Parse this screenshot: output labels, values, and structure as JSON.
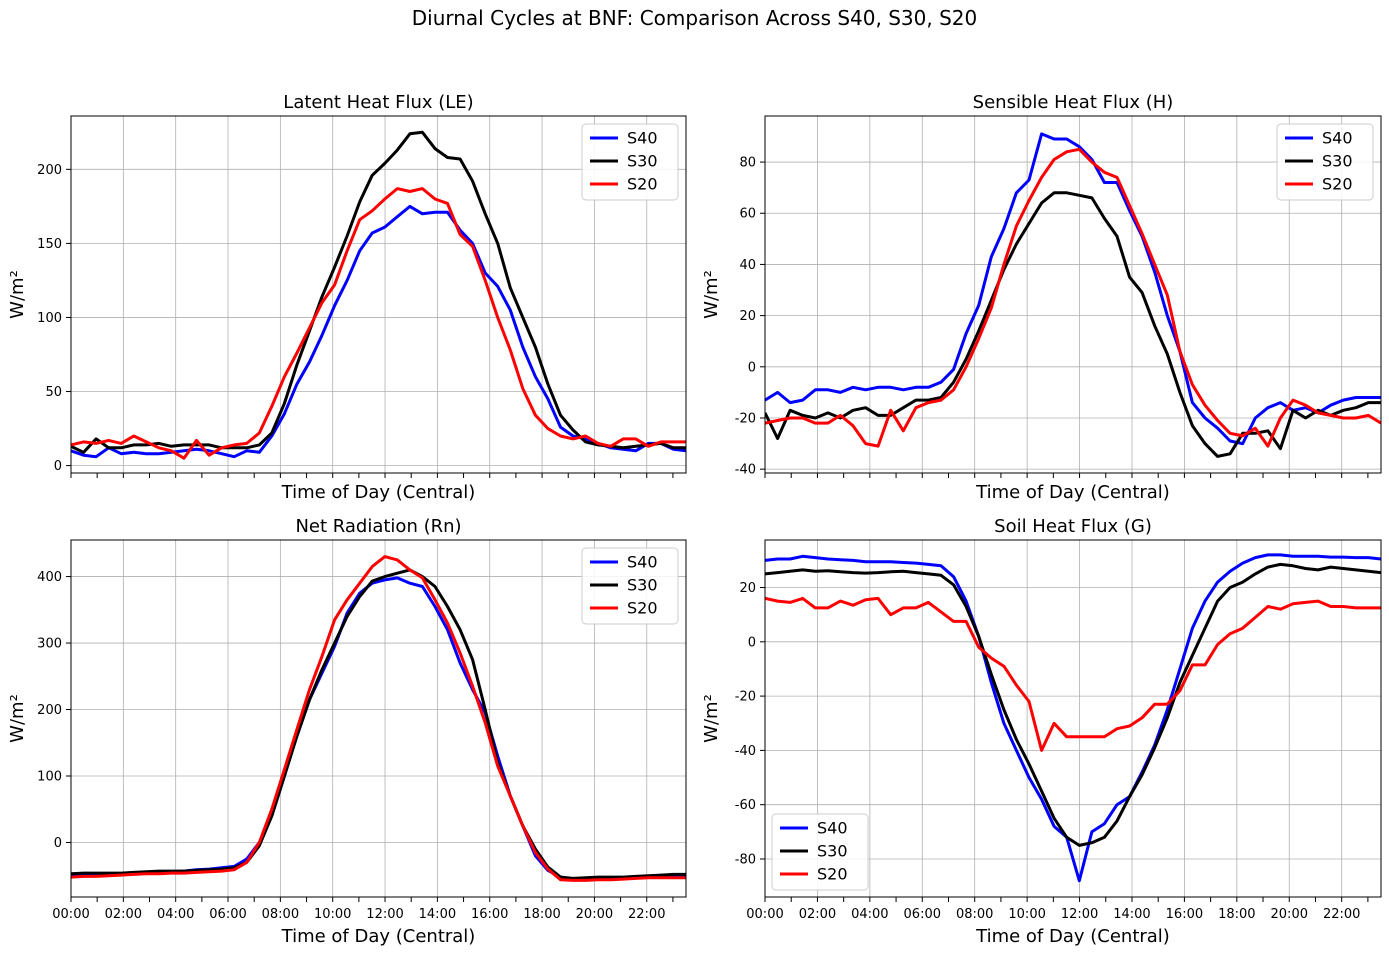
{
  "figure": {
    "suptitle": "Diurnal Cycles at BNF: Comparison Across S40, S30, S20"
  },
  "chart_data": [
    {
      "type": "line",
      "title": "Latent Heat Flux (LE)",
      "xlabel": "Time of Day (Central)",
      "ylabel": "W/m²",
      "xlim": [
        0,
        23.5
      ],
      "ylim": [
        -5,
        236
      ],
      "yticks": [
        0,
        50,
        100,
        150,
        200
      ],
      "xticks": [
        0,
        2,
        4,
        6,
        8,
        10,
        12,
        14,
        16,
        18,
        20,
        22
      ],
      "xtick_labels": [
        "00:00",
        "02:00",
        "04:00",
        "06:00",
        "08:00",
        "10:00",
        "12:00",
        "14:00",
        "16:00",
        "18:00",
        "20:00",
        "22:00"
      ],
      "show_xtick_labels": false,
      "grid": true,
      "legend_loc": "upper right",
      "series": [
        {
          "name": "S40",
          "color": "#0000ff",
          "values": [
            10,
            7,
            6,
            12,
            8,
            9,
            8,
            8,
            9,
            10,
            11,
            10,
            8,
            6,
            10,
            9,
            20,
            35,
            55,
            70,
            88,
            108,
            125,
            145,
            157,
            161,
            168,
            175,
            170,
            171,
            171,
            159,
            150,
            130,
            121,
            105,
            80,
            60,
            45,
            26,
            20,
            18,
            15,
            12,
            11,
            10,
            15,
            15,
            11,
            10
          ]
        },
        {
          "name": "S30",
          "color": "#000000",
          "values": [
            13,
            9,
            18,
            12,
            12,
            14,
            14,
            15,
            13,
            14,
            14,
            14,
            12,
            12,
            12,
            14,
            22,
            42,
            68,
            91,
            114,
            134,
            155,
            178,
            196,
            204,
            213,
            224,
            225,
            214,
            208,
            207,
            192,
            170,
            150,
            120,
            100,
            80,
            55,
            34,
            24,
            16,
            14,
            13,
            12,
            13,
            14,
            15,
            12,
            12
          ]
        },
        {
          "name": "S20",
          "color": "#ff0000",
          "values": [
            14,
            16,
            15,
            17,
            15,
            20,
            16,
            12,
            10,
            5,
            17,
            7,
            12,
            14,
            15,
            22,
            40,
            60,
            76,
            93,
            110,
            122,
            145,
            166,
            172,
            180,
            187,
            185,
            187,
            180,
            177,
            156,
            148,
            125,
            100,
            78,
            52,
            34,
            25,
            20,
            18,
            20,
            15,
            13,
            18,
            18,
            13,
            16,
            16,
            16
          ]
        }
      ]
    },
    {
      "type": "line",
      "title": "Sensible Heat Flux (H)",
      "xlabel": "Time of Day (Central)",
      "ylabel": "W/m²",
      "xlim": [
        0,
        23.5
      ],
      "ylim": [
        -41.5,
        98
      ],
      "yticks": [
        -40,
        -20,
        0,
        20,
        40,
        60,
        80
      ],
      "xticks": [
        0,
        2,
        4,
        6,
        8,
        10,
        12,
        14,
        16,
        18,
        20,
        22
      ],
      "xtick_labels": [
        "00:00",
        "02:00",
        "04:00",
        "06:00",
        "08:00",
        "10:00",
        "12:00",
        "14:00",
        "16:00",
        "18:00",
        "20:00",
        "22:00"
      ],
      "show_xtick_labels": false,
      "grid": true,
      "legend_loc": "upper right",
      "series": [
        {
          "name": "S40",
          "color": "#0000ff",
          "values": [
            -13,
            -10,
            -14,
            -13,
            -9,
            -9,
            -10,
            -8,
            -9,
            -8,
            -8,
            -9,
            -8,
            -8,
            -6,
            -1,
            13,
            24,
            43,
            54,
            68,
            73,
            91,
            89,
            89,
            86,
            81,
            72,
            72,
            61,
            51,
            37,
            20,
            6,
            -14,
            -20,
            -24,
            -29,
            -30,
            -20,
            -16,
            -14,
            -17,
            -16,
            -18,
            -15,
            -13,
            -12,
            -12,
            -12
          ]
        },
        {
          "name": "S30",
          "color": "#000000",
          "values": [
            -18,
            -28,
            -17,
            -19,
            -20,
            -18,
            -20,
            -17,
            -16,
            -19,
            -19,
            -16,
            -13,
            -13,
            -12,
            -6,
            3,
            14,
            26,
            38,
            48,
            56,
            64,
            68,
            68,
            67,
            66,
            58,
            51,
            35,
            29,
            16,
            5,
            -10,
            -23,
            -30,
            -35,
            -34,
            -26,
            -26,
            -25,
            -32,
            -17,
            -20,
            -17,
            -19,
            -17,
            -16,
            -14,
            -14
          ]
        },
        {
          "name": "S20",
          "color": "#ff0000",
          "values": [
            -22,
            -21,
            -20,
            -20,
            -22,
            -22,
            -19,
            -23,
            -30,
            -31,
            -17,
            -25,
            -16,
            -14,
            -13,
            -9,
            0,
            11,
            23,
            40,
            55,
            65,
            74,
            81,
            84,
            85,
            80,
            76,
            74,
            63,
            52,
            40,
            28,
            6,
            -7,
            -15,
            -21,
            -26,
            -27,
            -24,
            -31,
            -20,
            -13,
            -15,
            -18,
            -19,
            -20,
            -20,
            -19,
            -22
          ]
        }
      ]
    },
    {
      "type": "line",
      "title": "Net Radiation (Rn)",
      "xlabel": "Time of Day (Central)",
      "ylabel": "W/m²",
      "xlim": [
        0,
        23.5
      ],
      "ylim": [
        -82,
        455
      ],
      "yticks": [
        0,
        100,
        200,
        300,
        400
      ],
      "xticks": [
        0,
        2,
        4,
        6,
        8,
        10,
        12,
        14,
        16,
        18,
        20,
        22
      ],
      "xtick_labels": [
        "00:00",
        "02:00",
        "04:00",
        "06:00",
        "08:00",
        "10:00",
        "12:00",
        "14:00",
        "16:00",
        "18:00",
        "20:00",
        "22:00"
      ],
      "show_xtick_labels": true,
      "grid": true,
      "legend_loc": "upper right",
      "series": [
        {
          "name": "S40",
          "color": "#0000ff",
          "values": [
            -48,
            -47,
            -47,
            -47,
            -47,
            -46,
            -45,
            -44,
            -44,
            -43,
            -41,
            -40,
            -38,
            -36,
            -25,
            0,
            40,
            100,
            160,
            215,
            255,
            295,
            345,
            375,
            390,
            395,
            398,
            390,
            385,
            355,
            320,
            270,
            230,
            195,
            130,
            70,
            25,
            -20,
            -42,
            -52,
            -55,
            -55,
            -53,
            -53,
            -53,
            -52,
            -51,
            -50,
            -49,
            -49
          ]
        },
        {
          "name": "S30",
          "color": "#000000",
          "values": [
            -47,
            -46,
            -46,
            -46,
            -46,
            -45,
            -44,
            -43,
            -43,
            -43,
            -42,
            -41,
            -40,
            -38,
            -30,
            -5,
            40,
            100,
            160,
            215,
            260,
            300,
            340,
            370,
            393,
            400,
            405,
            410,
            400,
            385,
            355,
            320,
            275,
            200,
            120,
            70,
            25,
            -10,
            -37,
            -52,
            -54,
            -53,
            -52,
            -52,
            -52,
            -51,
            -50,
            -49,
            -48,
            -48
          ]
        },
        {
          "name": "S20",
          "color": "#ff0000",
          "values": [
            -52,
            -51,
            -51,
            -50,
            -49,
            -48,
            -47,
            -47,
            -46,
            -46,
            -45,
            -44,
            -43,
            -41,
            -30,
            0,
            50,
            110,
            170,
            230,
            280,
            335,
            365,
            390,
            415,
            430,
            425,
            410,
            398,
            365,
            330,
            285,
            235,
            180,
            115,
            70,
            25,
            -15,
            -40,
            -56,
            -57,
            -57,
            -56,
            -56,
            -55,
            -54,
            -53,
            -53,
            -53,
            -53
          ]
        }
      ]
    },
    {
      "type": "line",
      "title": "Soil Heat Flux (G)",
      "xlabel": "Time of Day (Central)",
      "ylabel": "W/m²",
      "xlim": [
        0,
        23.5
      ],
      "ylim": [
        -94,
        37.5
      ],
      "yticks": [
        -80,
        -60,
        -40,
        -20,
        0,
        20
      ],
      "xticks": [
        0,
        2,
        4,
        6,
        8,
        10,
        12,
        14,
        16,
        18,
        20,
        22
      ],
      "xtick_labels": [
        "00:00",
        "02:00",
        "04:00",
        "06:00",
        "08:00",
        "10:00",
        "12:00",
        "14:00",
        "16:00",
        "18:00",
        "20:00",
        "22:00"
      ],
      "show_xtick_labels": true,
      "grid": true,
      "legend_loc": "lower left",
      "series": [
        {
          "name": "S40",
          "color": "#0000ff",
          "values": [
            30,
            30.5,
            30.5,
            31.5,
            31,
            30.5,
            30.2,
            30,
            29.5,
            29.5,
            29.5,
            29.2,
            29,
            28.5,
            28,
            24,
            15,
            2,
            -15,
            -30,
            -40,
            -50,
            -58,
            -68,
            -72,
            -88,
            -70,
            -67,
            -60,
            -57,
            -48,
            -38,
            -25,
            -10,
            5,
            15,
            22,
            26,
            29,
            31,
            32,
            32,
            31.5,
            31.5,
            31.5,
            31.2,
            31.2,
            31,
            31,
            30.5
          ]
        },
        {
          "name": "S30",
          "color": "#000000",
          "values": [
            25,
            25.5,
            26,
            26.5,
            26,
            26.2,
            25.8,
            25.5,
            25.3,
            25.5,
            25.8,
            26,
            25.5,
            25,
            24.5,
            21,
            13,
            2,
            -12,
            -25,
            -36,
            -45,
            -55,
            -65,
            -72,
            -75,
            -74,
            -72,
            -66,
            -57,
            -49,
            -39,
            -28,
            -15,
            -5,
            5,
            15,
            20,
            22,
            25,
            27.5,
            28.5,
            28,
            27,
            26.5,
            27.5,
            27,
            26.5,
            26,
            25.5
          ]
        },
        {
          "name": "S20",
          "color": "#ff0000",
          "values": [
            16,
            15,
            14.5,
            16,
            12.5,
            12.5,
            15,
            13.5,
            15.5,
            16,
            10,
            12.5,
            12.5,
            14.5,
            11,
            7.5,
            7.5,
            -2,
            -6,
            -9,
            -16,
            -22,
            -40,
            -30,
            -35,
            -35,
            -35,
            -35,
            -32,
            -31,
            -28,
            -23,
            -23,
            -18,
            -8.5,
            -8.5,
            -1,
            3,
            5,
            9,
            13,
            12,
            14,
            14.5,
            15,
            13,
            13,
            12.5,
            12.5,
            12.5
          ]
        }
      ]
    }
  ]
}
